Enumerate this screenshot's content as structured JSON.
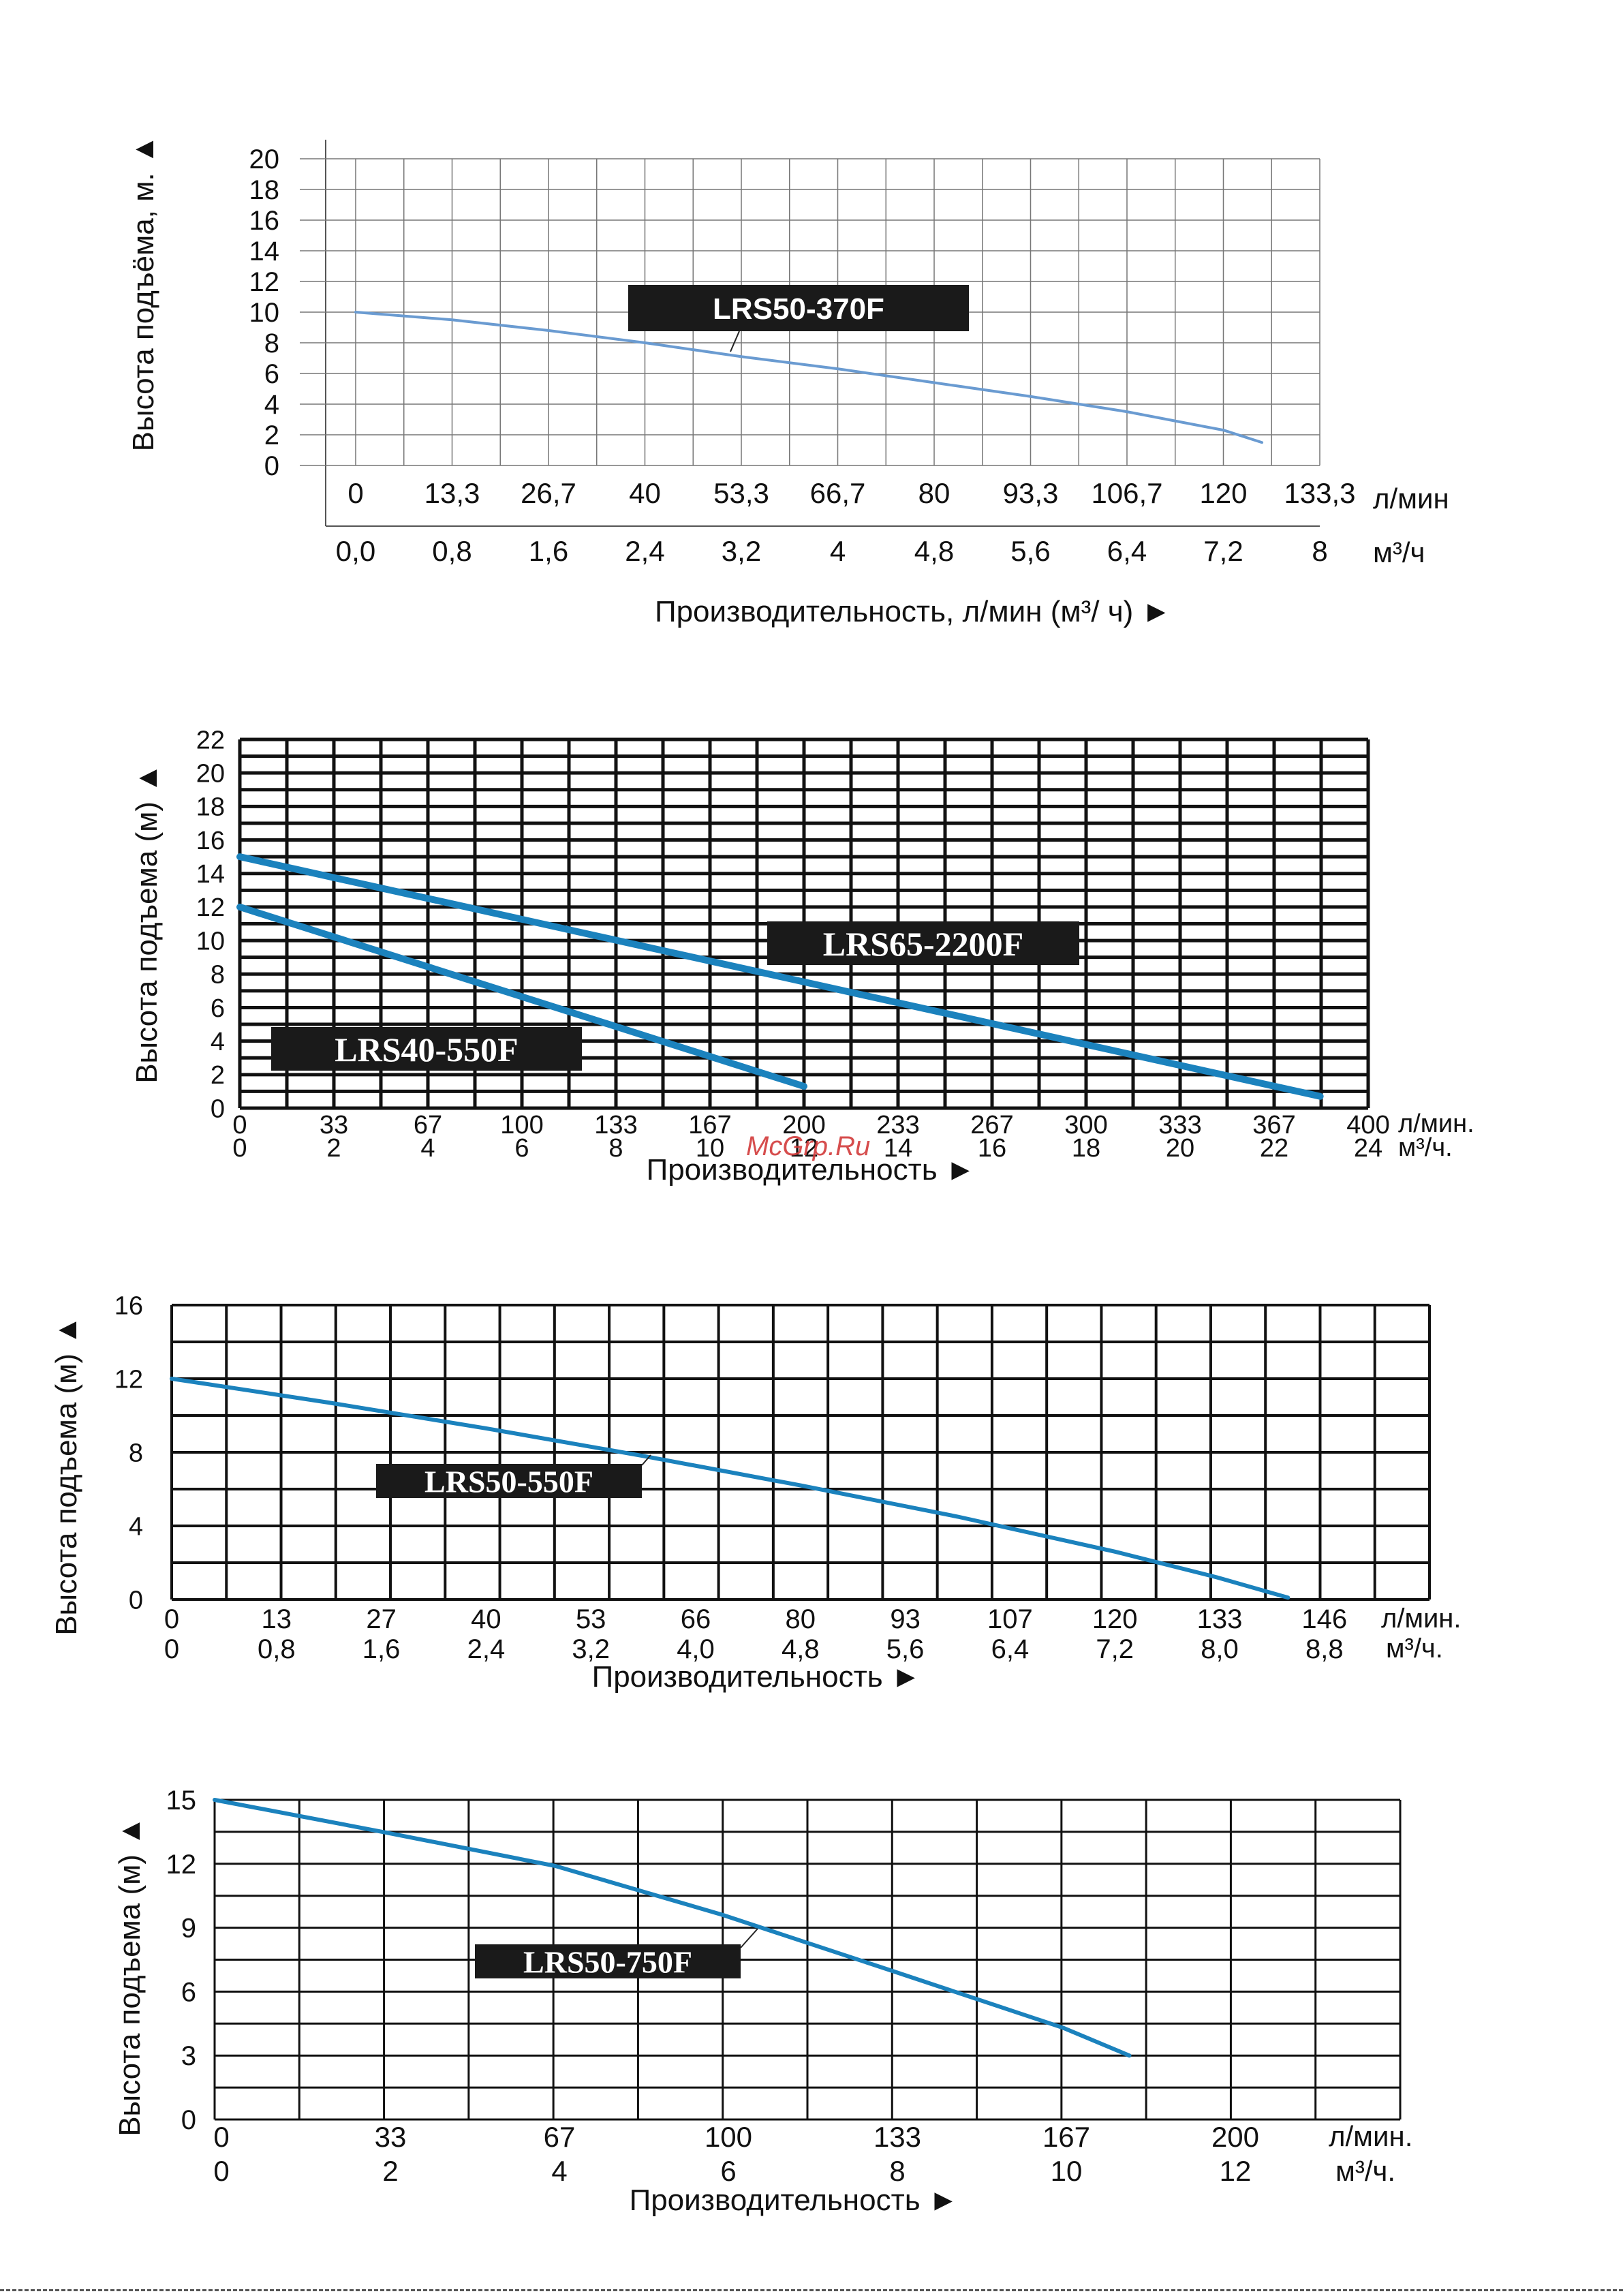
{
  "watermark": "McGrp.Ru",
  "colors": {
    "curve_light": "#6a9bd1",
    "curve_dark": "#1b82bd",
    "grid": "#222222",
    "label_bg": "#1a1a1a",
    "label_text": "#ffffff"
  },
  "chart_data": [
    {
      "type": "line",
      "ylabel": "Высота подъёма, м. ▲",
      "xlabel": "Производительность, л/мин (м³/ ч) ►",
      "ylim": [
        0,
        20
      ],
      "yticks": [
        "0",
        "2",
        "4",
        "6",
        "8",
        "10",
        "12",
        "14",
        "16",
        "18",
        "20"
      ],
      "xlim": [
        0,
        133.3
      ],
      "xticks_lmin": [
        "0",
        "13,3",
        "26,7",
        "40",
        "53,3",
        "66,7",
        "80",
        "93,3",
        "106,7",
        "120",
        "133,3"
      ],
      "xticks_m3h": [
        "0,0",
        "0,8",
        "1,6",
        "2,4",
        "3,2",
        "4",
        "4,8",
        "5,6",
        "6,4",
        "7,2",
        "8"
      ],
      "unit_lmin": "л/мин",
      "unit_m3h": "м³/ч",
      "grid": true,
      "series": [
        {
          "name": "LRS50-370F",
          "x": [
            0,
            13.3,
            26.7,
            40,
            53.3,
            66.7,
            80,
            93.3,
            106.7,
            120,
            125.3
          ],
          "y": [
            10,
            9.5,
            8.8,
            8.0,
            7.1,
            6.3,
            5.4,
            4.5,
            3.5,
            2.3,
            1.5
          ]
        }
      ]
    },
    {
      "type": "line",
      "ylabel": "Высота подъема (м) ▲",
      "xlabel": "Производительность ►",
      "ylim": [
        0,
        22
      ],
      "yticks": [
        "0",
        "2",
        "4",
        "6",
        "8",
        "10",
        "12",
        "14",
        "16",
        "18",
        "20",
        "22"
      ],
      "xlim": [
        0,
        400
      ],
      "xticks_lmin": [
        "0",
        "33",
        "67",
        "100",
        "133",
        "167",
        "200",
        "233",
        "267",
        "300",
        "333",
        "367",
        "400"
      ],
      "xticks_m3h": [
        "0",
        "2",
        "4",
        "6",
        "8",
        "10",
        "12",
        "14",
        "16",
        "18",
        "20",
        "22",
        "24"
      ],
      "unit_lmin": "л/мин.",
      "unit_m3h": "м³/ч.",
      "grid": true,
      "series": [
        {
          "name": "LRS65-2200F",
          "x": [
            0,
            383
          ],
          "y": [
            15,
            0.7
          ]
        },
        {
          "name": "LRS40-550F",
          "x": [
            0,
            200
          ],
          "y": [
            12,
            1.3
          ]
        }
      ]
    },
    {
      "type": "line",
      "ylabel": "Высота подъема (м) ▲",
      "xlabel": "Производительность ►",
      "ylim": [
        0,
        16
      ],
      "yticks": [
        "0",
        "4",
        "8",
        "12",
        "16"
      ],
      "xlim": [
        0,
        160
      ],
      "xticks_lmin": [
        "0",
        "13",
        "27",
        "40",
        "53",
        "66",
        "80",
        "93",
        "107",
        "120",
        "133",
        "146"
      ],
      "xticks_m3h": [
        "0",
        "0,8",
        "1,6",
        "2,4",
        "3,2",
        "4,0",
        "4,8",
        "5,6",
        "6,4",
        "7,2",
        "8,0",
        "8,8"
      ],
      "unit_lmin": "л/мин.",
      "unit_m3h": "м³/ч.",
      "grid": true,
      "series": [
        {
          "name": "LRS50-550F",
          "x": [
            0,
            20,
            40,
            60,
            80,
            100,
            120,
            133,
            142
          ],
          "y": [
            12,
            10.7,
            9.3,
            7.8,
            6.2,
            4.5,
            2.6,
            1.2,
            0.1
          ]
        }
      ]
    },
    {
      "type": "line",
      "ylabel": "Высота подъема (м) ▲",
      "xlabel": "Производительность ►",
      "ylim": [
        0,
        15
      ],
      "yticks": [
        "0",
        "3",
        "6",
        "9",
        "12",
        "15"
      ],
      "xlim": [
        0,
        233.3
      ],
      "xticks_lmin": [
        "0",
        "33",
        "67",
        "100",
        "133",
        "167",
        "200"
      ],
      "xticks_m3h": [
        "0",
        "2",
        "4",
        "6",
        "8",
        "10",
        "12"
      ],
      "unit_lmin": "л/мин.",
      "unit_m3h": "м³/ч.",
      "grid": true,
      "series": [
        {
          "name": "LRS50-750F",
          "x": [
            0,
            33,
            67,
            100,
            133,
            167,
            180
          ],
          "y": [
            15,
            13.5,
            11.9,
            9.6,
            7.0,
            4.3,
            3.0
          ]
        }
      ]
    }
  ]
}
